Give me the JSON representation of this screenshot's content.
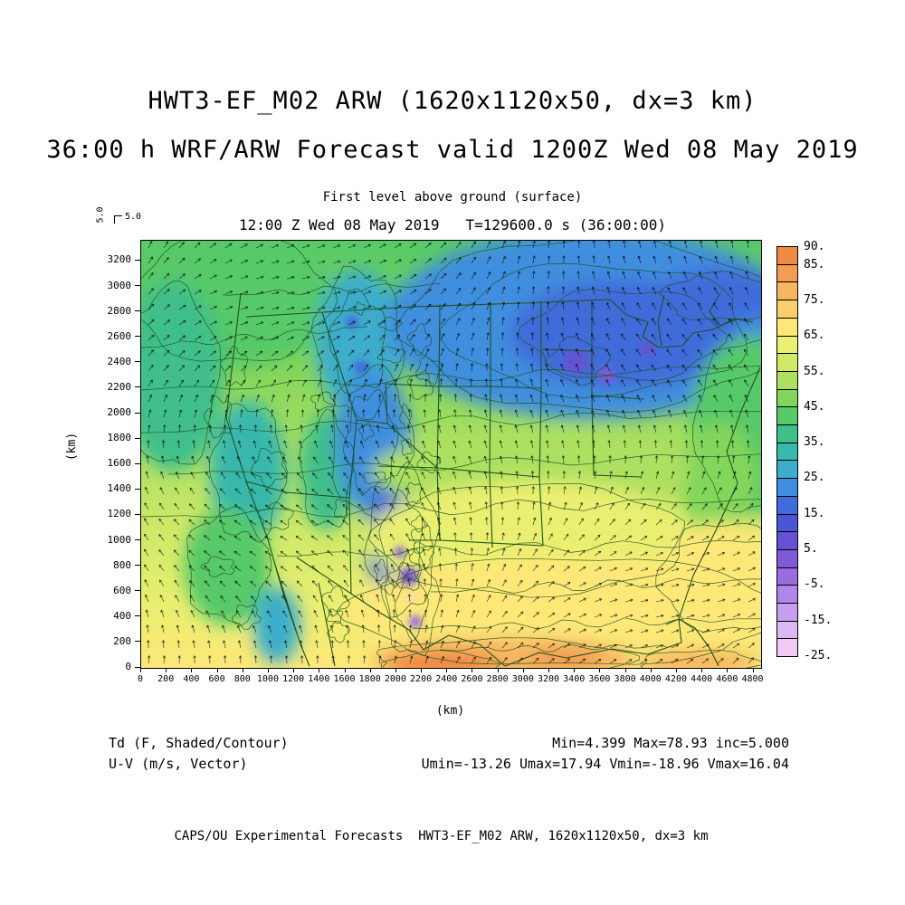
{
  "header": {
    "title_line1": "HWT3-EF_M02 ARW (1620x1120x50, dx=3 km)",
    "title_line2": "36:00 h WRF/ARW Forecast valid 1200Z Wed 08 May 2019"
  },
  "plot": {
    "level_label": "First level above ground (surface)",
    "time_label": "12:00 Z Wed 08 May 2019   T=129600.0 s (36:00:00)",
    "vector_ref_v": "5.0",
    "vector_ref_u": "5.0"
  },
  "axes": {
    "x_unit": "(km)",
    "y_unit": "(km)",
    "x_ticks": [
      0,
      200,
      400,
      600,
      800,
      1000,
      1200,
      1400,
      1600,
      1800,
      2000,
      2200,
      2400,
      2600,
      2800,
      3000,
      3200,
      3400,
      3600,
      3800,
      4000,
      4200,
      4400,
      4600,
      4800
    ],
    "y_ticks": [
      0,
      200,
      400,
      600,
      800,
      1000,
      1200,
      1400,
      1600,
      1800,
      2000,
      2200,
      2400,
      2600,
      2800,
      3000,
      3200
    ],
    "x_domain_km": 4860,
    "y_domain_km": 3360
  },
  "colorbar": {
    "level_min": -25,
    "level_max": 90,
    "level_step": 5,
    "labels": [
      "90.",
      "85.",
      "75.",
      "65.",
      "55.",
      "45.",
      "35.",
      "25.",
      "15.",
      "5.",
      "-5.",
      "-15.",
      "-25."
    ],
    "label_values": [
      90,
      85,
      75,
      65,
      55,
      45,
      35,
      25,
      15,
      5,
      -5,
      -15,
      -25
    ],
    "colors_top_to_bottom": [
      "#ee8a44",
      "#f29e52",
      "#f7b55f",
      "#fbcf6b",
      "#fde878",
      "#e9ef70",
      "#cfe968",
      "#ade060",
      "#83d65c",
      "#57c968",
      "#3fbf8a",
      "#39b8ac",
      "#3dadcb",
      "#3f8ede",
      "#3f6cda",
      "#4956d6",
      "#6452d2",
      "#7f5ad8",
      "#9a6ce0",
      "#b286e8",
      "#c79fee",
      "#dcb9f3",
      "#f0ccf5"
    ],
    "contour_color": "#1d521d",
    "vector_color": "#000000"
  },
  "legend": {
    "field_label_1": "Td (F, Shaded/Contour)",
    "field_label_2": "U-V (m/s, Vector)",
    "stats_line_1": "Min=4.399 Max=78.93 inc=5.000",
    "stats_line_2": "Umin=-13.26 Umax=17.94 Vmin=-18.96 Vmax=16.04"
  },
  "footer": {
    "credit": "CAPS/OU Experimental Forecasts  HWT3-EF_M02 ARW, 1620x1120x50, dx=3 km"
  },
  "chart_data": {
    "type": "heatmap",
    "title": "HWT3-EF_M02 ARW (1620x1120x50, dx=3 km)",
    "subtitle": "36:00 h WRF/ARW Forecast valid 1200Z Wed 08 May 2019",
    "level": "First level above ground (surface)",
    "valid_time": "12:00 Z Wed 08 May 2019",
    "model_time_s": 129600.0,
    "forecast_length": "36:00:00",
    "xlabel": "(km)",
    "ylabel": "(km)",
    "xlim": [
      0,
      4860
    ],
    "ylim": [
      0,
      3360
    ],
    "shaded_field": {
      "name": "Td",
      "units": "F",
      "style": "Shaded/Contour",
      "min": 4.399,
      "max": 78.93,
      "contour_interval": 5.0,
      "shade_levels_F": [
        -25,
        -20,
        -15,
        -10,
        -5,
        0,
        5,
        10,
        15,
        20,
        25,
        30,
        35,
        40,
        45,
        50,
        55,
        60,
        65,
        70,
        75,
        80,
        85,
        90
      ]
    },
    "vector_field": {
      "name": "U-V",
      "units": "m/s",
      "umin": -13.26,
      "umax": 17.94,
      "vmin": -18.96,
      "vmax": 16.04,
      "reference_vector": 5.0
    },
    "spatial_pattern": "Dewpoint (F) over CONUS: 65-80 F (yellow/orange) along Gulf coast and Southeast; 45-65 F (green) across plains and East; 15-35 F (blue/cyan) over Rockies and upper Midwest/Great Lakes; isolated <5 F (purple/pink) pockets over high terrain of Colorado/New Mexico; wind vectors mostly southerly over the plains."
  }
}
